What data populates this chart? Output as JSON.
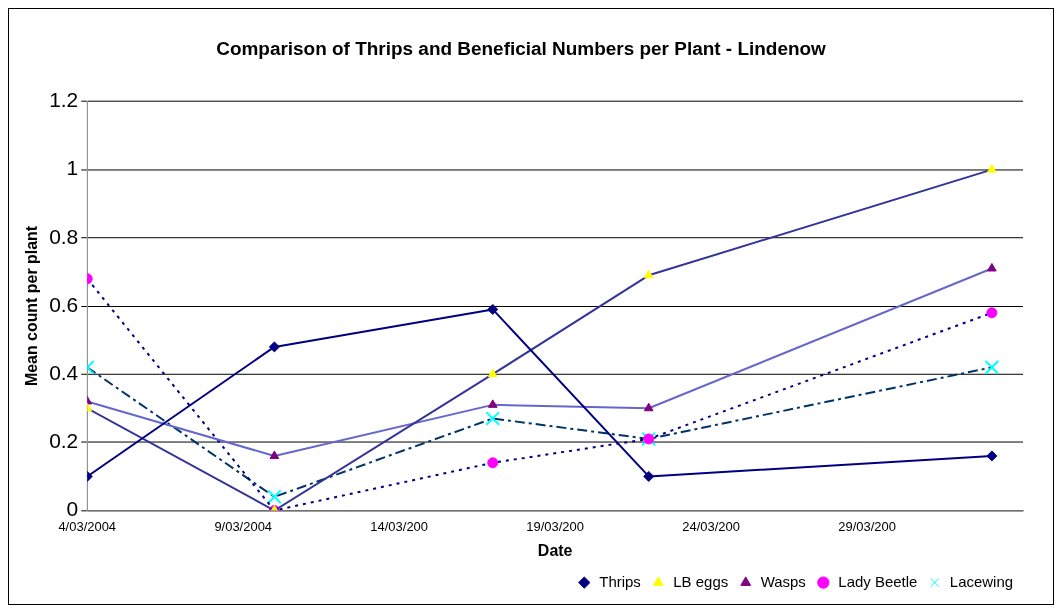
{
  "chart_data": {
    "type": "line",
    "title": "Comparison of Thrips and Beneficial Numbers per Plant - Lindenow",
    "xlabel": "Date",
    "ylabel": "Mean count per plant",
    "x": [
      "2004-03-04",
      "2004-03-10",
      "2004-03-17",
      "2004-03-22",
      "2004-04-02"
    ],
    "xlim": [
      "2004-03-04",
      "2004-04-03"
    ],
    "xticks": [
      {
        "value": "2004-03-04",
        "label": "4/03/2004"
      },
      {
        "value": "2004-03-09",
        "label": "9/03/2004"
      },
      {
        "value": "2004-03-14",
        "label": "14/03/200"
      },
      {
        "value": "2004-03-19",
        "label": "19/03/200"
      },
      {
        "value": "2004-03-24",
        "label": "24/03/200"
      },
      {
        "value": "2004-03-29",
        "label": "29/03/200"
      }
    ],
    "ylim": [
      0,
      1.2
    ],
    "yticks": [
      0,
      0.2,
      0.4,
      0.6,
      0.8,
      1,
      1.2
    ],
    "grid": "y",
    "legend": "bottom right",
    "series": [
      {
        "name": "Thrips",
        "color": "#000080",
        "colors": [
          "#000080",
          "#000080",
          "#000080",
          "#000080",
          "#000080"
        ],
        "marker": "diamond",
        "line_style": "solid",
        "values": [
          0.1,
          0.48,
          0.59,
          0.1,
          0.16
        ]
      },
      {
        "name": "LB eggs",
        "color": "#333399",
        "colors": [
          "#ffff00",
          "#ffff00",
          "#ffff00",
          "#ffff00",
          "#ffff00"
        ],
        "marker": "triangle",
        "line_style": "solid",
        "values": [
          0.3,
          0,
          0.4,
          0.69,
          1
        ]
      },
      {
        "name": "Wasps",
        "color": "#6666cc",
        "colors": [
          "#800080",
          "#800080",
          "#800080",
          "#800080",
          "#800080"
        ],
        "marker": "triangle",
        "line_style": "solid",
        "values": [
          0.32,
          0.16,
          0.31,
          0.3,
          0.71
        ]
      },
      {
        "name": "Lady Beetle",
        "color": "#000080",
        "colors": [
          "#ff00ff",
          "#ff00ff",
          "#ff00ff",
          "#ff00ff",
          "#ff00ff"
        ],
        "marker": "circle",
        "line_style": "dotted",
        "values": [
          0.68,
          0,
          0.14,
          0.21,
          0.58
        ]
      },
      {
        "name": "Lacewing",
        "color": "#003366",
        "colors": [
          "#00ffff",
          "#00ffff",
          "#00ffff",
          "#00ffff",
          "#00ffff"
        ],
        "marker": "cross",
        "line_style": "dashed",
        "values": [
          0.42,
          0.04,
          0.27,
          0.21,
          0.42
        ]
      }
    ]
  }
}
